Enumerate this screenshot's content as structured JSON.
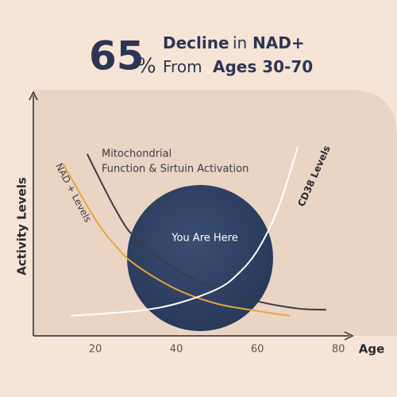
{
  "chart_data": {
    "type": "line",
    "title_number": "65",
    "title_unit": "%",
    "title_line1": [
      "Decline",
      "in",
      "NAD+"
    ],
    "title_line2": [
      "From",
      "Ages 30-70"
    ],
    "xlabel": "Age",
    "ylabel": "Activity Levels",
    "annotation": "You Are Here",
    "xlim": [
      5,
      88
    ],
    "ylim": [
      0,
      100
    ],
    "xticks": [
      20,
      40,
      60,
      80
    ],
    "series": [
      {
        "name": [
          "Mitochondrial",
          "Function & Sirtuin Activation"
        ],
        "color": "#3b3b47",
        "x": [
          18,
          25,
          30,
          40,
          50,
          60,
          70,
          77
        ],
        "values": [
          75,
          52,
          40,
          27,
          19,
          14,
          11,
          10.5
        ]
      },
      {
        "name": "NAD + Levels",
        "color": "#e8a43c",
        "x": [
          12,
          20,
          25,
          30,
          40,
          50,
          60,
          68
        ],
        "values": [
          71,
          48,
          37,
          29,
          19,
          13,
          10,
          8
        ]
      },
      {
        "name": "CD38 Levels",
        "color": "#ffffff",
        "x": [
          14,
          30,
          40,
          50,
          55,
          60,
          65,
          70
        ],
        "values": [
          8,
          10,
          13,
          19,
          25,
          35,
          52,
          78
        ]
      }
    ]
  }
}
